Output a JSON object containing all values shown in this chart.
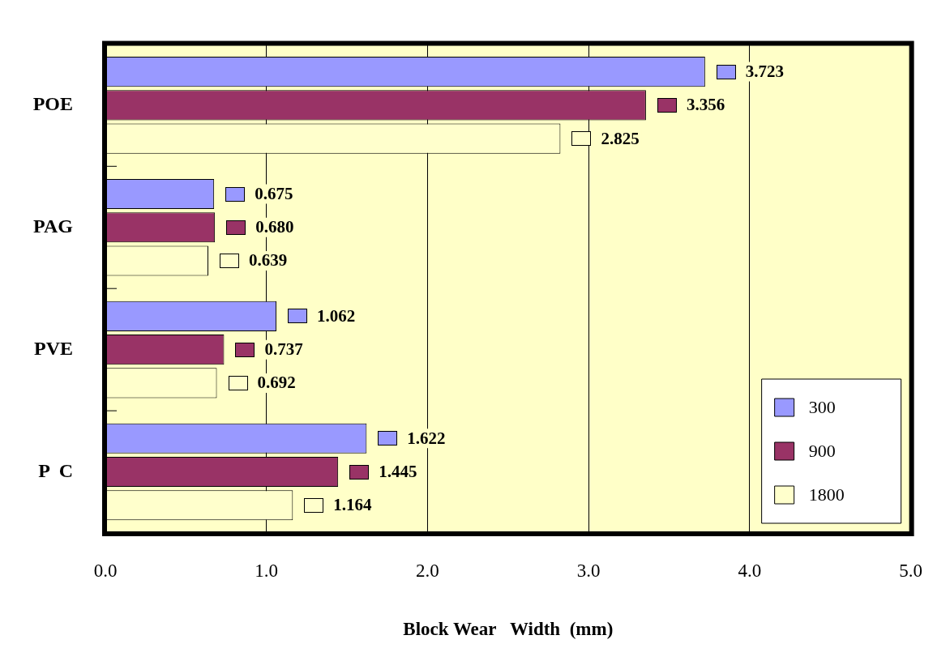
{
  "chart_data": {
    "type": "bar",
    "orientation": "horizontal",
    "xlabel": "Block Wear   Width  (mm)",
    "categories": [
      "POE",
      "PAG",
      "PVE",
      "P  C"
    ],
    "series": [
      {
        "name": "300",
        "color": "#9999ff",
        "values": [
          3.723,
          0.675,
          1.062,
          1.622
        ],
        "value_labels": [
          "3.723",
          "0.675",
          "1.062",
          "1.622"
        ]
      },
      {
        "name": "900",
        "color": "#993366",
        "values": [
          3.356,
          0.68,
          0.737,
          1.445
        ],
        "value_labels": [
          "3.356",
          "0.680",
          "0.737",
          "1.445"
        ]
      },
      {
        "name": "1800",
        "color": "#ffffcc",
        "values": [
          2.825,
          0.639,
          0.692,
          1.164
        ],
        "value_labels": [
          "2.825",
          "0.639",
          "0.692",
          "1.164"
        ]
      }
    ],
    "xlim": [
      0,
      5
    ],
    "xticks": [
      {
        "value": 0,
        "label": "0.0"
      },
      {
        "value": 1,
        "label": "1.0"
      },
      {
        "value": 2,
        "label": "2.0"
      },
      {
        "value": 3,
        "label": "3.0"
      },
      {
        "value": 4,
        "label": "4.0"
      },
      {
        "value": 5,
        "label": "5.0"
      }
    ],
    "grid": "x",
    "legend": "bottom right"
  }
}
